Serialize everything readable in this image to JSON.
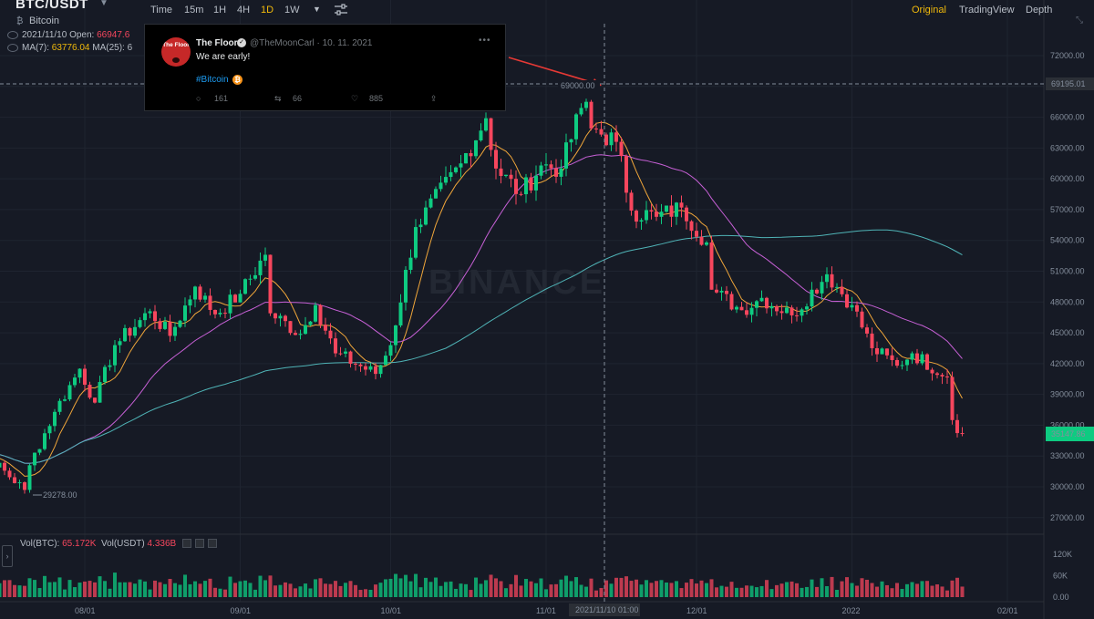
{
  "header": {
    "symbol": "BTC/USDT",
    "symbol_name": "Bitcoin",
    "timeframes": [
      "Time",
      "15m",
      "1H",
      "4H",
      "1D",
      "1W"
    ],
    "active_timeframe": "1D",
    "views": [
      "Original",
      "TradingView",
      "Depth"
    ],
    "active_view": "Original"
  },
  "legend": {
    "ohlc_prefix": "2021/11/10  Open: ",
    "ohlc_open": "66947.6",
    "ma_row_prefix": "MA(7): ",
    "ma7_value": "63776.04",
    "ma25_label": "  MA(25): ",
    "ma25_value": "6"
  },
  "tweet": {
    "name": "The Floor",
    "avatar_text": "The Floor",
    "handle": "@TheMoonCarl · 10. 11. 2021",
    "text": "We are early!",
    "hashtag": "#Bitcoin",
    "replies": "161",
    "retweets": "66",
    "likes": "885"
  },
  "volume_legend": {
    "label": "Vol(BTC): ",
    "btc_value": "65.172K",
    "usdt_label": "Vol(USDT) ",
    "usdt_value": "4.336B"
  },
  "watermark": "BINANCE",
  "colors": {
    "up": "#0ecb81",
    "down": "#f6465d",
    "ma7": "#f0a63a",
    "ma25": "#c760d6",
    "ma99": "#4fb3b6",
    "accent": "#f0b90b"
  },
  "chart_data": {
    "type": "candlestick",
    "price_ticks": [
      "72000.00",
      "69000.00",
      "66000.00",
      "63000.00",
      "60000.00",
      "57000.00",
      "54000.00",
      "51000.00",
      "48000.00",
      "45000.00",
      "42000.00",
      "39000.00",
      "36000.00",
      "33000.00",
      "30000.00",
      "27000.00"
    ],
    "volume_ticks": [
      "120K",
      "60K",
      "0.00"
    ],
    "x_ticks": [
      "08/01",
      "09/01",
      "10/01",
      "11/01",
      "12/01",
      "2022",
      "02/01"
    ],
    "crosshair_date": "2021/11/10 01:00",
    "crosshair_price": "69195.01",
    "last_price": "35147.86",
    "high_label": "69000.00",
    "low_label": "29278.00",
    "ylim": [
      25000,
      75000
    ],
    "anchors": [
      [
        "2021-07-06",
        34200
      ],
      [
        "2021-07-13",
        32800
      ],
      [
        "2021-07-20",
        29700
      ],
      [
        "2021-07-21",
        32100
      ],
      [
        "2021-07-26",
        37300
      ],
      [
        "2021-07-31",
        41500
      ],
      [
        "2021-08-03",
        38200
      ],
      [
        "2021-08-07",
        43800
      ],
      [
        "2021-08-14",
        47100
      ],
      [
        "2021-08-18",
        44700
      ],
      [
        "2021-08-23",
        49500
      ],
      [
        "2021-08-27",
        46800
      ],
      [
        "2021-09-01",
        48800
      ],
      [
        "2021-09-06",
        52600
      ],
      [
        "2021-09-07",
        46900
      ],
      [
        "2021-09-13",
        44900
      ],
      [
        "2021-09-16",
        47700
      ],
      [
        "2021-09-20",
        43000
      ],
      [
        "2021-09-28",
        41000
      ],
      [
        "2021-10-01",
        43800
      ],
      [
        "2021-10-06",
        55300
      ],
      [
        "2021-10-15",
        61500
      ],
      [
        "2021-10-20",
        65900
      ],
      [
        "2021-10-22",
        61000
      ],
      [
        "2021-10-27",
        58500
      ],
      [
        "2021-10-31",
        61300
      ],
      [
        "2021-11-04",
        61000
      ],
      [
        "2021-11-08",
        66900
      ],
      [
        "2021-11-09",
        67500
      ],
      [
        "2021-11-10",
        64900
      ],
      [
        "2021-11-15",
        63600
      ],
      [
        "2021-11-18",
        56900
      ],
      [
        "2021-11-23",
        56300
      ],
      [
        "2021-11-28",
        57200
      ],
      [
        "2021-12-03",
        53800
      ],
      [
        "2021-12-04",
        49200
      ],
      [
        "2021-12-10",
        47200
      ],
      [
        "2021-12-14",
        48400
      ],
      [
        "2021-12-20",
        46700
      ],
      [
        "2021-12-27",
        50700
      ],
      [
        "2022-01-01",
        47700
      ],
      [
        "2022-01-05",
        43500
      ],
      [
        "2022-01-10",
        41800
      ],
      [
        "2022-01-13",
        43000
      ],
      [
        "2022-01-20",
        40700
      ],
      [
        "2022-01-21",
        36500
      ],
      [
        "2022-01-23",
        35147.86
      ]
    ]
  }
}
